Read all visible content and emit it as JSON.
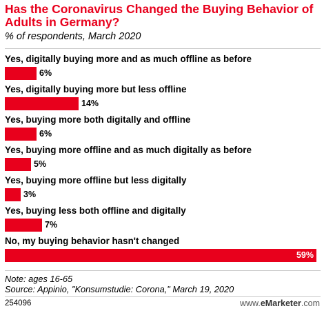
{
  "title": "Has the Coronavirus Changed the Buying Behavior of Adults in Germany?",
  "subtitle": "% of respondents, March 2020",
  "chart_data": {
    "type": "bar",
    "orientation": "horizontal",
    "title": "Has the Coronavirus Changed the Buying Behavior of Adults in Germany?",
    "subtitle": "% of respondents, March 2020",
    "categories": [
      "Yes, digitally buying more and as much offline as before",
      "Yes, digitally buying more but less offline",
      "Yes, buying more both digitally and offline",
      "Yes, buying more offline and as much digitally as before",
      "Yes, buying more offline but less digitally",
      "Yes, buying less both offline and digitally",
      "No, my buying behavior hasn't changed"
    ],
    "values": [
      6,
      14,
      6,
      5,
      3,
      7,
      59
    ],
    "value_labels": [
      "6%",
      "14%",
      "6%",
      "5%",
      "3%",
      "7%",
      "59%"
    ],
    "unit": "%",
    "xlim": [
      0,
      59
    ],
    "grid": false,
    "bar_color": "#e8001c"
  },
  "footer": {
    "note": "Note: ages 16-65",
    "source": "Source: Appinio, \"Konsumstudie: Corona,\" March 19, 2020",
    "chart_id": "254096",
    "brand_prefix": "www.",
    "brand_name": "eMarketer",
    "brand_suffix": ".com"
  }
}
